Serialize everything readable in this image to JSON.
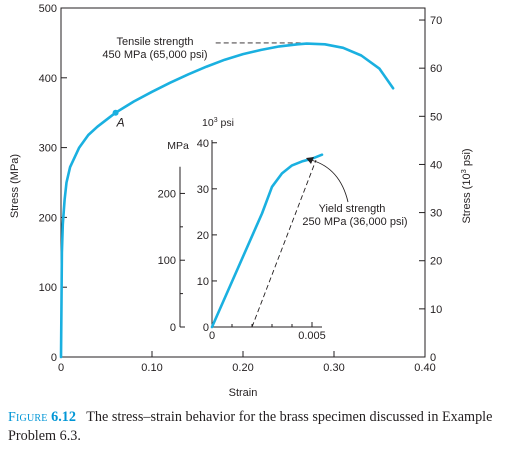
{
  "chart_data": {
    "type": "line",
    "title": "",
    "main": {
      "xlabel": "Strain",
      "ylabel_left": "Stress (MPa)",
      "ylabel_right_prefix": "Stress (10",
      "ylabel_right_sup": "3",
      "ylabel_right_suffix": " psi)",
      "xlim": [
        0,
        0.4
      ],
      "ylim_left": [
        0,
        500
      ],
      "ylim_right": [
        0,
        72.5
      ],
      "xticks": [
        "0",
        "0.10",
        "0.20",
        "0.30",
        "0.40"
      ],
      "xtick_values": [
        0,
        0.1,
        0.2,
        0.3,
        0.4
      ],
      "yticks_left": [
        "0",
        "100",
        "200",
        "300",
        "400",
        "500"
      ],
      "ytick_values_left": [
        0,
        100,
        200,
        300,
        400,
        500
      ],
      "yticks_right": [
        "0",
        "10",
        "20",
        "30",
        "40",
        "50",
        "60",
        "70"
      ],
      "ytick_values_right": [
        0,
        10,
        20,
        30,
        40,
        50,
        60,
        70
      ],
      "series": [
        {
          "color": "#1ab0e0",
          "points": [
            [
              0,
              0
            ],
            [
              0.0005,
              80
            ],
            [
              0.001,
              150
            ],
            [
              0.002,
              190
            ],
            [
              0.004,
              225
            ],
            [
              0.006,
              250
            ],
            [
              0.01,
              272
            ],
            [
              0.02,
              300
            ],
            [
              0.03,
              318
            ],
            [
              0.04,
              330
            ],
            [
              0.06,
              350
            ],
            [
              0.08,
              366
            ],
            [
              0.1,
              380
            ],
            [
              0.12,
              393
            ],
            [
              0.14,
              405
            ],
            [
              0.16,
              416
            ],
            [
              0.18,
              426
            ],
            [
              0.2,
              434
            ],
            [
              0.22,
              440
            ],
            [
              0.24,
              445
            ],
            [
              0.26,
              448
            ],
            [
              0.27,
              449
            ],
            [
              0.29,
              448
            ],
            [
              0.31,
              443
            ],
            [
              0.33,
              432
            ],
            [
              0.35,
              413
            ],
            [
              0.365,
              385
            ]
          ]
        }
      ],
      "marker": {
        "x": 0.06,
        "y": 350,
        "label": "A"
      },
      "annotation_tensile": {
        "line1": "Tensile strength",
        "line2": "450 MPa (65,000 psi)",
        "y": 450,
        "x_start": 0.17,
        "x_end": 0.265
      }
    },
    "inset": {
      "xlim": [
        0,
        0.0055
      ],
      "ylim_left": [
        0,
        280
      ],
      "ylim_right": [
        0,
        40.6
      ],
      "left_unit": "MPa",
      "right_unit_prefix": "10",
      "right_unit_sup": "3",
      "right_unit_suffix": " psi",
      "xticks": [
        "0",
        "0.005"
      ],
      "xtick_values": [
        0,
        0.005
      ],
      "yticks_left": [
        "0",
        "100",
        "200"
      ],
      "ytick_values_left": [
        0,
        100,
        200
      ],
      "yticks_right": [
        "0",
        "10",
        "20",
        "30",
        "40"
      ],
      "ytick_values_right": [
        0,
        10,
        20,
        30,
        40
      ],
      "series": [
        {
          "color": "#1ab0e0",
          "points": [
            [
              0,
              0
            ],
            [
              0.0025,
              170
            ],
            [
              0.003,
              210
            ],
            [
              0.0035,
              230
            ],
            [
              0.004,
              242
            ],
            [
              0.0045,
              248
            ],
            [
              0.005,
              252
            ],
            [
              0.0055,
              258
            ]
          ]
        }
      ],
      "offset_line": {
        "x1": 0.002,
        "y1": 0,
        "x2": 0.0052,
        "y2": 250
      },
      "annotation_yield": {
        "line1": "Yield strength",
        "line2": "250 MPa (36,000 psi)"
      }
    }
  },
  "caption": {
    "label": "Figure",
    "number": "6.12",
    "text": "The stress–strain behavior for the brass specimen discussed in Example Problem 6.3."
  }
}
